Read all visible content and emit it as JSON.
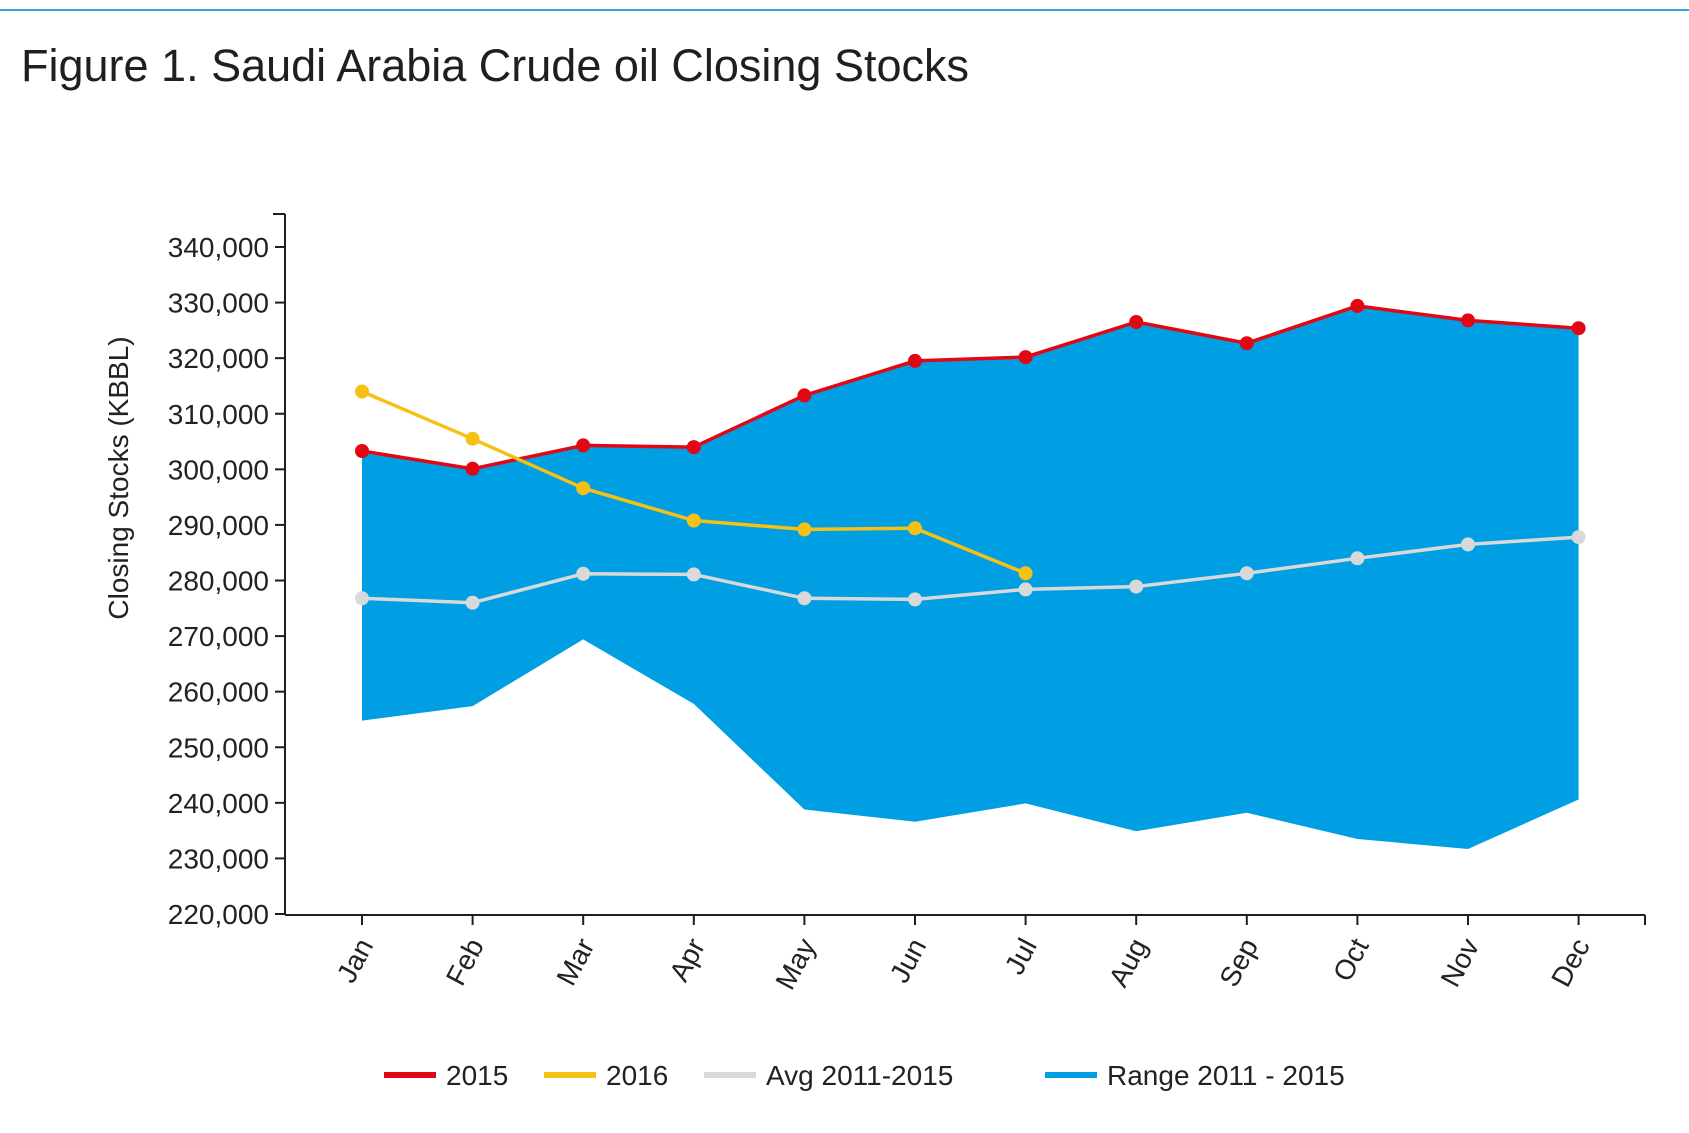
{
  "title": "Figure 1. Saudi Arabia Crude oil Closing Stocks",
  "colors": {
    "series_2015": "#e30613",
    "series_2016": "#f5c116",
    "series_avg": "#d9d9d9",
    "range": "#009fe3",
    "axis": "#1f1f1f",
    "rule": "#3aa3d8"
  },
  "chart_data": {
    "type": "line",
    "title": "Figure 1. Saudi Arabia Crude oil Closing Stocks",
    "xlabel": "",
    "ylabel": "Closing Stocks (KBBL)",
    "ylim": [
      220000,
      345000
    ],
    "yticks": [
      220000,
      230000,
      240000,
      250000,
      260000,
      270000,
      280000,
      290000,
      300000,
      310000,
      320000,
      330000,
      340000
    ],
    "ytick_labels": [
      "220,000",
      "230,000",
      "240,000",
      "250,000",
      "260,000",
      "270,000",
      "280,000",
      "290,000",
      "300,000",
      "310,000",
      "320,000",
      "330,000",
      "340,000"
    ],
    "categories": [
      "Jan",
      "Feb",
      "Mar",
      "Apr",
      "May",
      "Jun",
      "Jul",
      "Aug",
      "Sep",
      "Oct",
      "Nov",
      "Dec"
    ],
    "grid": false,
    "legend_position": "bottom-center",
    "range": {
      "name": "Range 2011 - 2015",
      "upper": [
        303000,
        300000,
        304300,
        304000,
        313300,
        319500,
        320200,
        326500,
        322700,
        329400,
        326800,
        325400
      ],
      "lower": [
        254800,
        257400,
        269400,
        257800,
        238800,
        236600,
        239900,
        234900,
        238200,
        233500,
        231700,
        240600
      ]
    },
    "series": [
      {
        "name": "2015",
        "values": [
          303300,
          300100,
          304300,
          304000,
          313300,
          319500,
          320200,
          326500,
          322700,
          329400,
          326800,
          325400
        ]
      },
      {
        "name": "2016",
        "values": [
          314000,
          305500,
          296600,
          290800,
          289200,
          289400,
          281300,
          null,
          null,
          null,
          null,
          null
        ]
      },
      {
        "name": "Avg 2011-2015",
        "values": [
          276800,
          276000,
          281200,
          281100,
          276800,
          276600,
          278400,
          278900,
          281300,
          284000,
          286500,
          287800
        ]
      }
    ]
  }
}
